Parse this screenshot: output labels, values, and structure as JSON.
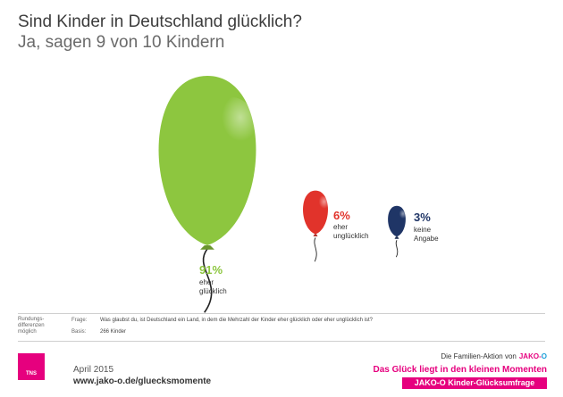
{
  "chart_data": {
    "type": "pictogram",
    "title": "Sind Kinder in Deutschland glücklich?",
    "subtitle": "Ja, sagen 9 von 10 Kindern",
    "unit": "%",
    "categories": [
      "eher glücklich",
      "eher unglücklich",
      "keine Angabe"
    ],
    "values": [
      91,
      6,
      3
    ],
    "labels": [
      "91%",
      "6%",
      "3%"
    ],
    "descriptions": [
      [
        "eher",
        "glücklich"
      ],
      [
        "eher",
        "unglücklich"
      ],
      [
        "keine",
        "Angabe"
      ]
    ],
    "colors": [
      "#8dc63f",
      "#e1332b",
      "#1f3566"
    ]
  },
  "notes": {
    "rounding": [
      "Rundungs-",
      "differenzen",
      "möglich"
    ],
    "question_label": "Frage:",
    "question_text": "Was glaubst du, ist Deutschland ein Land, in dem die Mehrzahl der Kinder eher glücklich oder eher unglücklich ist?",
    "base_label": "Basis:",
    "base_text": "266 Kinder"
  },
  "footer": {
    "logo_text": "TNS",
    "date": "April 2015",
    "url": "www.jako-o.de/gluecksmomente",
    "family_action": "Die Familien-Aktion von",
    "brand_logo": [
      "JAKO",
      "-",
      "O"
    ],
    "tagline": "Das Glück liegt in den kleinen Momenten",
    "survey": "JAKO-O Kinder-Glücksumfrage"
  }
}
